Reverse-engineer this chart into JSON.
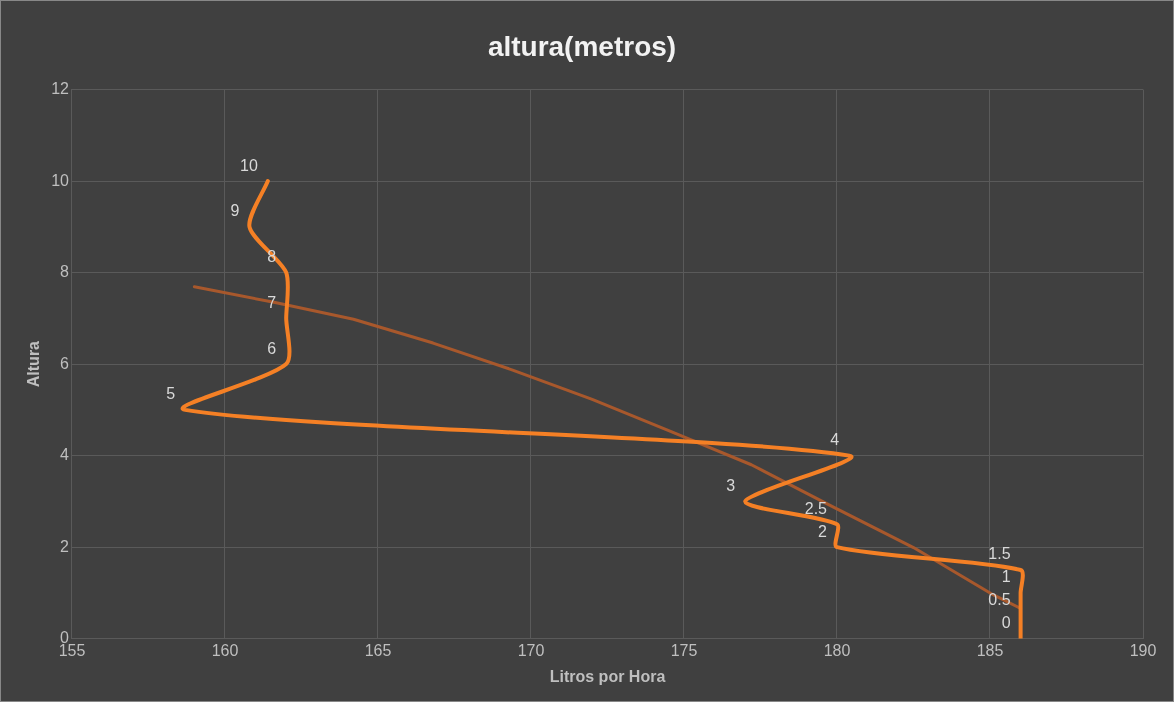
{
  "chart_data": {
    "type": "line",
    "title": "altura(metros)",
    "xlabel": "Litros por Hora",
    "ylabel": "Altura",
    "series": [
      {
        "color": "#f58025",
        "x": [
          186,
          186,
          186,
          186,
          180,
          180,
          177,
          180.4,
          158.7,
          162,
          162,
          162,
          160.8,
          161.4
        ],
        "values": [
          0,
          0.5,
          1,
          1.5,
          2,
          2.5,
          3,
          4,
          5,
          6,
          7,
          8,
          9,
          10
        ],
        "value_labels": [
          "0",
          "0.5",
          "1",
          "1.5",
          "2",
          "2.5",
          "3",
          "4",
          "5",
          "6",
          "7",
          "8",
          "9",
          "10"
        ]
      },
      {
        "color": "#a8582c",
        "x": [
          159,
          161.6,
          164.2,
          166.8,
          169.4,
          172,
          174.6,
          177.2,
          179.9,
          182.5,
          185.1,
          186
        ],
        "values": [
          7.69,
          7.35,
          6.98,
          6.46,
          5.87,
          5.23,
          4.52,
          3.8,
          2.87,
          1.99,
          0.96,
          0.66
        ]
      }
    ],
    "xlim": [
      155,
      190
    ],
    "xticks": [
      155,
      160,
      165,
      170,
      175,
      180,
      185,
      190
    ],
    "ylim": [
      0,
      12
    ],
    "yticks": [
      0,
      2,
      4,
      6,
      8,
      10,
      12
    ],
    "grid": true,
    "legend": false,
    "marker": "none",
    "line_style": "solid"
  }
}
